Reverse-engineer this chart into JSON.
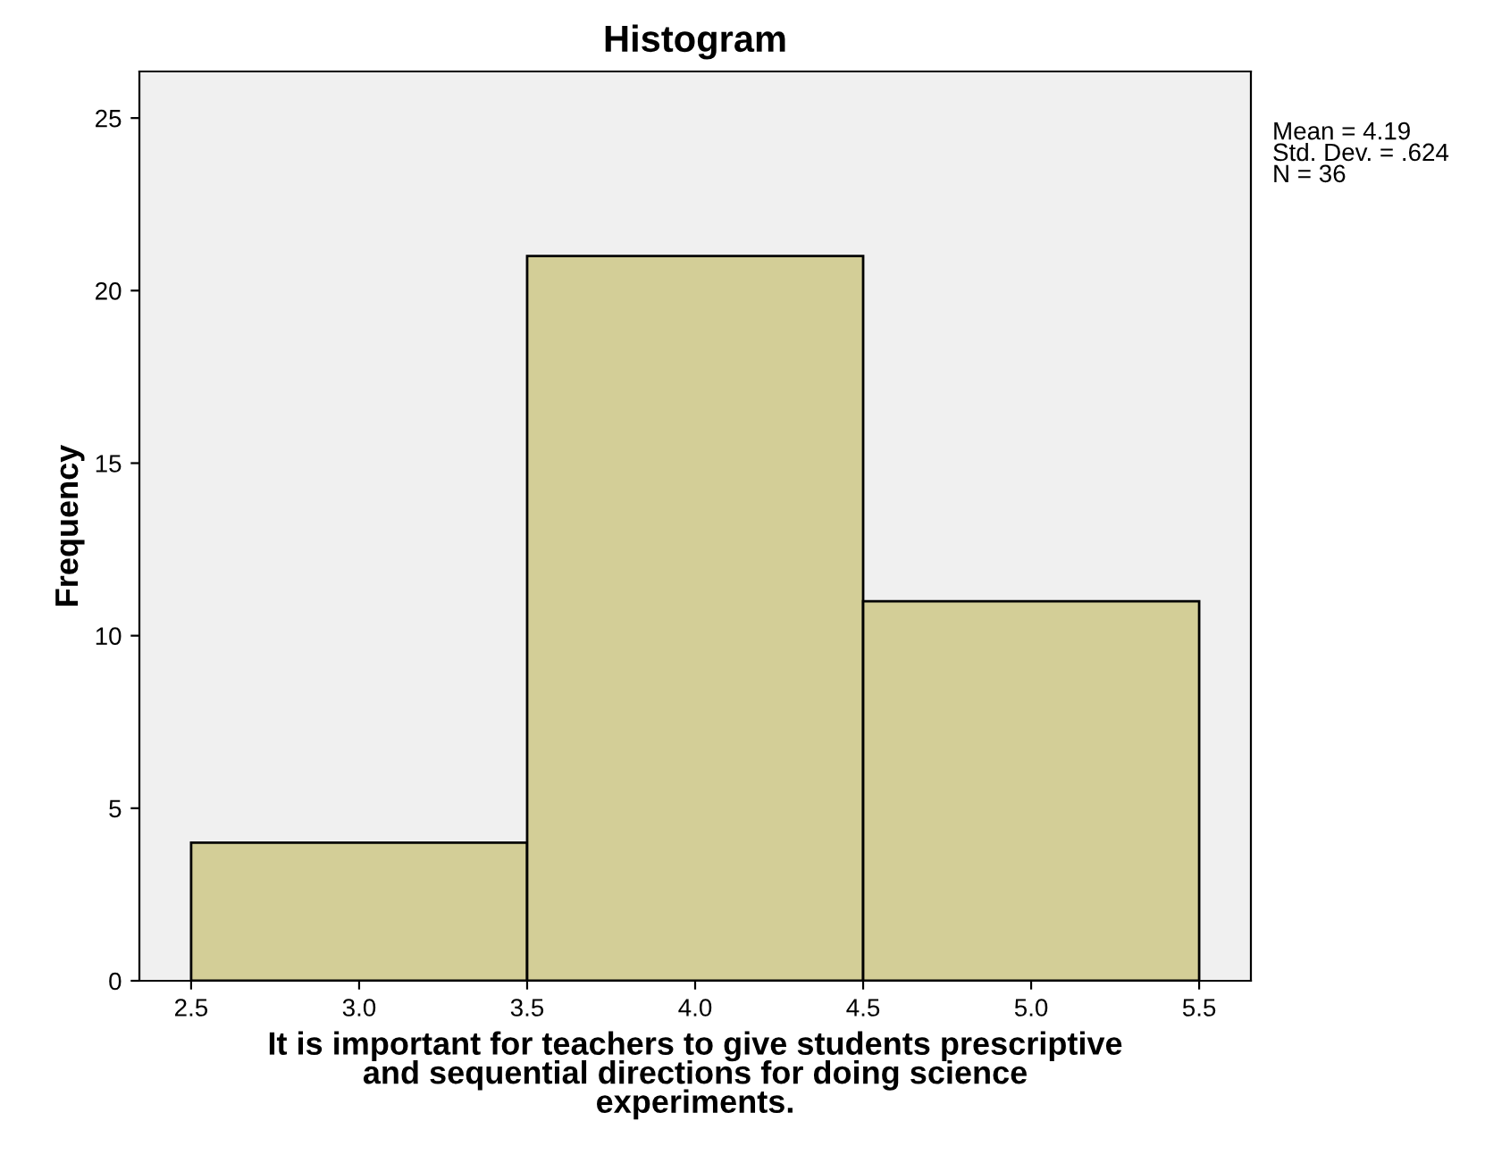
{
  "chart_data": {
    "type": "histogram",
    "title": "Histogram",
    "xlabel": "It is important for teachers to give students prescriptive\nand sequential directions for doing science\nexperiments.",
    "ylabel": "Frequency",
    "bins": [
      2.5,
      3.5,
      4.5,
      5.5
    ],
    "values": [
      4,
      21,
      11
    ],
    "color": "#d3ce97",
    "xlim": [
      2.346,
      5.654
    ],
    "ylim": [
      0,
      26.35
    ],
    "xticks": [
      2.5,
      {
        "value": 3.0,
        "label": "3.0"
      },
      3.5,
      {
        "value": 4.0,
        "label": "4.0"
      },
      4.5,
      {
        "value": 5.0,
        "label": "5.0"
      },
      5.5
    ],
    "yticks": [
      0,
      5,
      10,
      15,
      20,
      25
    ],
    "grid": false,
    "annotations": [
      "Mean = 4.19\nStd. Dev. = .624\nN = 36"
    ]
  }
}
